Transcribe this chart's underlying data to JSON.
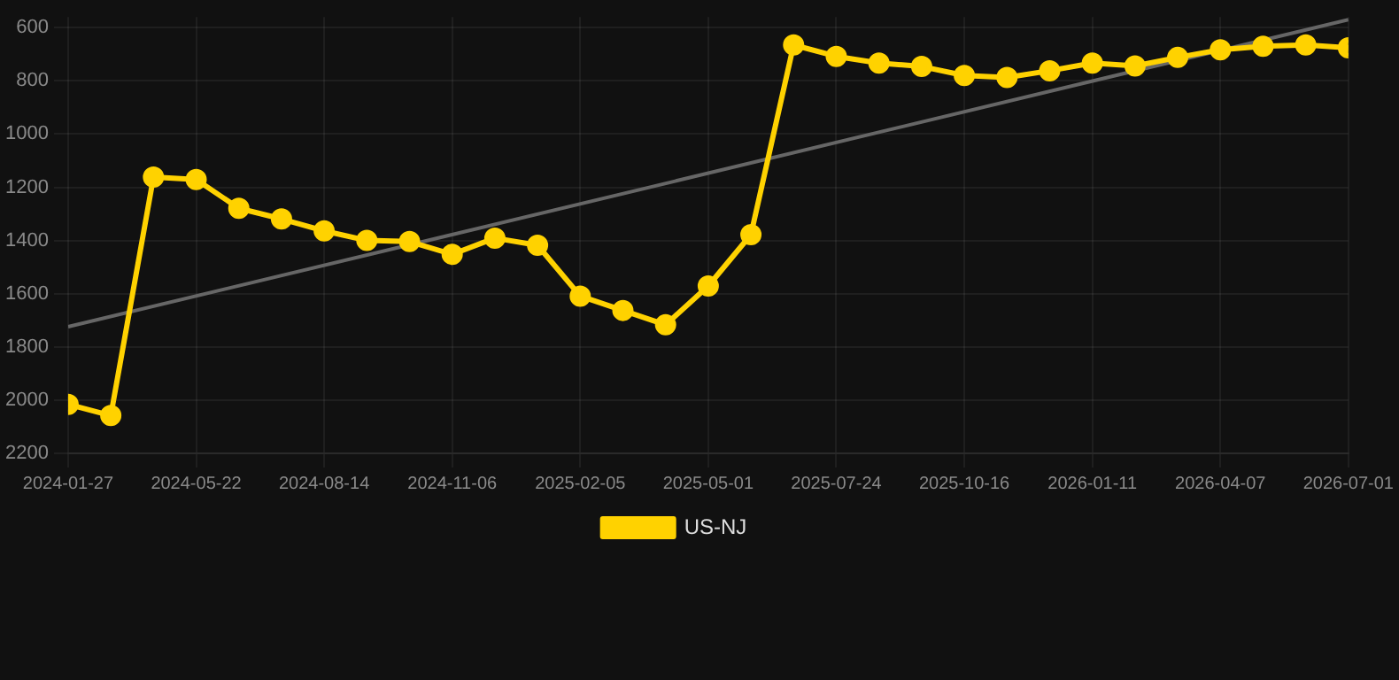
{
  "chart_data": {
    "type": "line",
    "categories": [
      "2024-01-27",
      null,
      null,
      "2024-05-22",
      null,
      null,
      "2024-08-14",
      null,
      null,
      "2024-11-06",
      null,
      null,
      "2025-02-05",
      null,
      null,
      "2025-05-01",
      null,
      null,
      "2025-07-24",
      null,
      null,
      "2025-10-16",
      null,
      null,
      "2026-01-11",
      null,
      null,
      "2026-04-07",
      null,
      null,
      "2026-07-01"
    ],
    "series": [
      {
        "name": "US-NJ",
        "color": "#ffd200",
        "values": [
          2016,
          2058,
          1162,
          1171,
          1279,
          1319,
          1364,
          1400,
          1404,
          1452,
          1391,
          1418,
          1609,
          1663,
          1717,
          1571,
          1378,
          665,
          708,
          733,
          746,
          780,
          787,
          762,
          733,
          744,
          712,
          683,
          670,
          665,
          676
        ]
      },
      {
        "type": "line",
        "color": "#666666",
        "marker": "none",
        "values": [
          1724,
          null,
          null,
          null,
          null,
          null,
          null,
          null,
          null,
          null,
          null,
          null,
          null,
          null,
          null,
          null,
          null,
          null,
          null,
          null,
          null,
          null,
          null,
          null,
          null,
          null,
          null,
          null,
          null,
          null,
          570
        ]
      }
    ],
    "ylim": [
      2200,
      560
    ],
    "yticks": [
      600,
      800,
      1000,
      1200,
      1400,
      1600,
      1800,
      2000,
      2200
    ],
    "grid": true,
    "legend": "bottom",
    "marker": "circle"
  }
}
